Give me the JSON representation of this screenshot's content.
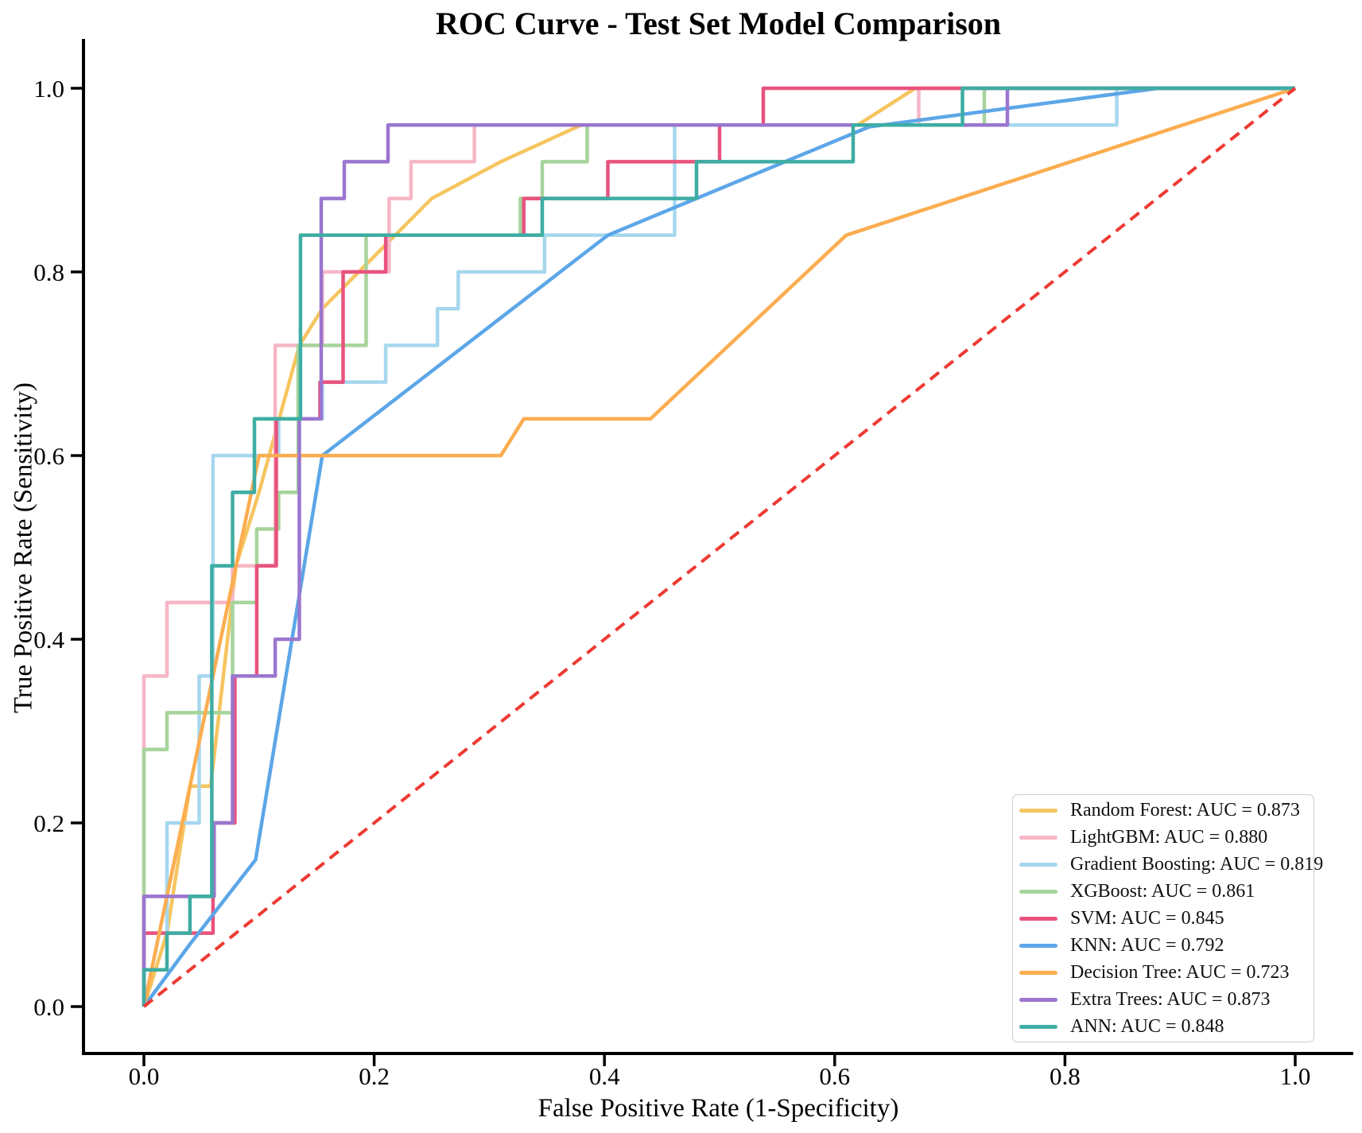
{
  "page": {
    "background": "#ffffff"
  },
  "chart_data": {
    "type": "line",
    "title": "ROC Curve - Test Set Model Comparison",
    "xlabel": "False Positive Rate (1-Specificity)",
    "ylabel": "True Positive Rate (Sensitivity)",
    "xlim": [
      -0.052,
      1.051
    ],
    "ylim": [
      -0.051,
      1.05
    ],
    "grid": false,
    "legend_position": "lower right",
    "axis_color": "#000000",
    "x_ticks": {
      "values": [
        0.0,
        0.2,
        0.4,
        0.6,
        0.8,
        1.0
      ],
      "labels": [
        "0.0",
        "0.2",
        "0.4",
        "0.6",
        "0.8",
        "1.0"
      ]
    },
    "y_ticks": {
      "values": [
        0.0,
        0.2,
        0.4,
        0.6,
        0.8,
        1.0
      ],
      "labels": [
        "0.0",
        "0.2",
        "0.4",
        "0.6",
        "0.8",
        "1.0"
      ]
    },
    "reference_line": {
      "name": "chance-diagonal",
      "color": "#ed3a32",
      "style": "dashed",
      "points": [
        [
          0,
          0
        ],
        [
          1,
          1
        ]
      ]
    },
    "series": [
      {
        "name": "Random Forest",
        "auc": 0.873,
        "legend_label": "Random Forest: AUC = 0.873",
        "color": "#f6c55f",
        "points": [
          [
            0,
            0
          ],
          [
            0.02,
            0.08
          ],
          [
            0.04,
            0.24
          ],
          [
            0.058,
            0.24
          ],
          [
            0.08,
            0.48
          ],
          [
            0.1,
            0.56
          ],
          [
            0.135,
            0.72
          ],
          [
            0.155,
            0.76
          ],
          [
            0.25,
            0.88
          ],
          [
            0.31,
            0.92
          ],
          [
            0.38,
            0.96
          ],
          [
            0.62,
            0.96
          ],
          [
            0.67,
            1.0
          ],
          [
            1,
            1
          ]
        ]
      },
      {
        "name": "LightGBM",
        "auc": 0.88,
        "legend_label": "LightGBM: AUC = 0.880",
        "color": "#f6b6c6",
        "points": [
          [
            0,
            0
          ],
          [
            0,
            0.36
          ],
          [
            0.02,
            0.36
          ],
          [
            0.02,
            0.44
          ],
          [
            0.077,
            0.44
          ],
          [
            0.077,
            0.48
          ],
          [
            0.114,
            0.48
          ],
          [
            0.114,
            0.72
          ],
          [
            0.155,
            0.72
          ],
          [
            0.155,
            0.8
          ],
          [
            0.213,
            0.8
          ],
          [
            0.213,
            0.88
          ],
          [
            0.232,
            0.88
          ],
          [
            0.232,
            0.92
          ],
          [
            0.287,
            0.92
          ],
          [
            0.287,
            0.96
          ],
          [
            0.673,
            0.96
          ],
          [
            0.673,
            1.0
          ],
          [
            1,
            1
          ]
        ]
      },
      {
        "name": "Gradient Boosting",
        "auc": 0.819,
        "legend_label": "Gradient Boosting: AUC = 0.819",
        "color": "#a6d7ee",
        "points": [
          [
            0,
            0
          ],
          [
            0,
            0.08
          ],
          [
            0.02,
            0.08
          ],
          [
            0.02,
            0.2
          ],
          [
            0.048,
            0.2
          ],
          [
            0.048,
            0.36
          ],
          [
            0.06,
            0.36
          ],
          [
            0.06,
            0.6
          ],
          [
            0.117,
            0.6
          ],
          [
            0.117,
            0.64
          ],
          [
            0.155,
            0.64
          ],
          [
            0.155,
            0.68
          ],
          [
            0.21,
            0.68
          ],
          [
            0.21,
            0.72
          ],
          [
            0.255,
            0.72
          ],
          [
            0.255,
            0.76
          ],
          [
            0.273,
            0.76
          ],
          [
            0.273,
            0.8
          ],
          [
            0.348,
            0.8
          ],
          [
            0.348,
            0.84
          ],
          [
            0.461,
            0.84
          ],
          [
            0.461,
            0.96
          ],
          [
            0.845,
            0.96
          ],
          [
            0.845,
            1.0
          ],
          [
            1,
            1
          ]
        ]
      },
      {
        "name": "XGBoost",
        "auc": 0.861,
        "legend_label": "XGBoost: AUC = 0.861",
        "color": "#a7d49c",
        "points": [
          [
            0,
            0
          ],
          [
            0,
            0.28
          ],
          [
            0.02,
            0.28
          ],
          [
            0.02,
            0.32
          ],
          [
            0.077,
            0.32
          ],
          [
            0.077,
            0.44
          ],
          [
            0.098,
            0.44
          ],
          [
            0.098,
            0.52
          ],
          [
            0.117,
            0.52
          ],
          [
            0.117,
            0.56
          ],
          [
            0.134,
            0.56
          ],
          [
            0.134,
            0.72
          ],
          [
            0.193,
            0.72
          ],
          [
            0.193,
            0.84
          ],
          [
            0.327,
            0.84
          ],
          [
            0.327,
            0.88
          ],
          [
            0.346,
            0.88
          ],
          [
            0.346,
            0.92
          ],
          [
            0.385,
            0.92
          ],
          [
            0.385,
            0.96
          ],
          [
            0.73,
            0.96
          ],
          [
            0.73,
            1.0
          ],
          [
            1,
            1
          ]
        ]
      },
      {
        "name": "SVM",
        "auc": 0.845,
        "legend_label": "SVM: AUC = 0.845",
        "color": "#e8537e",
        "points": [
          [
            0,
            0
          ],
          [
            0,
            0.08
          ],
          [
            0.06,
            0.08
          ],
          [
            0.06,
            0.2
          ],
          [
            0.079,
            0.2
          ],
          [
            0.079,
            0.36
          ],
          [
            0.098,
            0.36
          ],
          [
            0.098,
            0.48
          ],
          [
            0.115,
            0.48
          ],
          [
            0.115,
            0.64
          ],
          [
            0.153,
            0.64
          ],
          [
            0.153,
            0.68
          ],
          [
            0.173,
            0.68
          ],
          [
            0.173,
            0.8
          ],
          [
            0.21,
            0.8
          ],
          [
            0.21,
            0.84
          ],
          [
            0.33,
            0.84
          ],
          [
            0.33,
            0.88
          ],
          [
            0.403,
            0.88
          ],
          [
            0.403,
            0.92
          ],
          [
            0.5,
            0.92
          ],
          [
            0.5,
            0.96
          ],
          [
            0.538,
            0.96
          ],
          [
            0.538,
            1.0
          ],
          [
            1,
            1
          ]
        ]
      },
      {
        "name": "KNN",
        "auc": 0.792,
        "legend_label": "KNN: AUC = 0.792",
        "color": "#5ca6e8",
        "points": [
          [
            0,
            0
          ],
          [
            0.04,
            0.068
          ],
          [
            0.097,
            0.16
          ],
          [
            0.155,
            0.6
          ],
          [
            0.403,
            0.84
          ],
          [
            0.63,
            0.958
          ],
          [
            0.881,
            1.0
          ],
          [
            1,
            1
          ]
        ]
      },
      {
        "name": "Decision Tree",
        "auc": 0.723,
        "legend_label": "Decision Tree: AUC = 0.723",
        "color": "#fbad50",
        "points": [
          [
            0,
            0
          ],
          [
            0.1,
            0.6
          ],
          [
            0.31,
            0.6
          ],
          [
            0.33,
            0.64
          ],
          [
            0.44,
            0.64
          ],
          [
            0.61,
            0.84
          ],
          [
            1,
            1
          ]
        ]
      },
      {
        "name": "Extra Trees",
        "auc": 0.873,
        "legend_label": "Extra Trees: AUC = 0.873",
        "color": "#9a76ce",
        "points": [
          [
            0,
            0
          ],
          [
            0,
            0.12
          ],
          [
            0.061,
            0.12
          ],
          [
            0.061,
            0.2
          ],
          [
            0.077,
            0.2
          ],
          [
            0.077,
            0.36
          ],
          [
            0.114,
            0.36
          ],
          [
            0.114,
            0.4
          ],
          [
            0.135,
            0.4
          ],
          [
            0.135,
            0.64
          ],
          [
            0.154,
            0.64
          ],
          [
            0.154,
            0.88
          ],
          [
            0.174,
            0.88
          ],
          [
            0.174,
            0.92
          ],
          [
            0.212,
            0.92
          ],
          [
            0.212,
            0.96
          ],
          [
            0.75,
            0.96
          ],
          [
            0.75,
            1.0
          ],
          [
            1,
            1
          ]
        ]
      },
      {
        "name": "ANN",
        "auc": 0.848,
        "legend_label": "ANN: AUC = 0.848",
        "color": "#3eada3",
        "points": [
          [
            0,
            0
          ],
          [
            0,
            0.04
          ],
          [
            0.02,
            0.04
          ],
          [
            0.02,
            0.08
          ],
          [
            0.04,
            0.08
          ],
          [
            0.04,
            0.12
          ],
          [
            0.059,
            0.12
          ],
          [
            0.059,
            0.48
          ],
          [
            0.077,
            0.48
          ],
          [
            0.077,
            0.56
          ],
          [
            0.096,
            0.56
          ],
          [
            0.096,
            0.64
          ],
          [
            0.136,
            0.64
          ],
          [
            0.136,
            0.84
          ],
          [
            0.346,
            0.84
          ],
          [
            0.346,
            0.88
          ],
          [
            0.48,
            0.88
          ],
          [
            0.48,
            0.92
          ],
          [
            0.616,
            0.92
          ],
          [
            0.616,
            0.96
          ],
          [
            0.711,
            0.96
          ],
          [
            0.711,
            1.0
          ],
          [
            1,
            1
          ]
        ]
      }
    ]
  }
}
